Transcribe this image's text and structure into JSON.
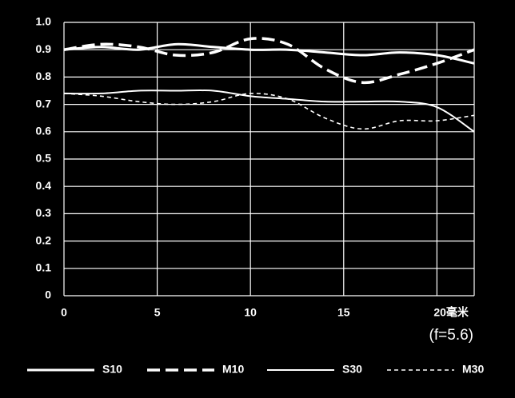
{
  "chart_data": {
    "type": "line",
    "x": [
      0,
      2,
      4,
      6,
      8,
      10,
      12,
      14,
      16,
      18,
      20,
      22
    ],
    "series": [
      {
        "name": "S10",
        "color": "#ffffff",
        "style": "solid-thick",
        "values": [
          0.9,
          0.91,
          0.9,
          0.92,
          0.91,
          0.9,
          0.9,
          0.89,
          0.88,
          0.89,
          0.88,
          0.85
        ]
      },
      {
        "name": "M10",
        "color": "#ffffff",
        "style": "long-dash",
        "values": [
          0.9,
          0.92,
          0.91,
          0.88,
          0.89,
          0.94,
          0.92,
          0.83,
          0.78,
          0.81,
          0.85,
          0.9
        ]
      },
      {
        "name": "S30",
        "color": "#ffffff",
        "style": "solid",
        "values": [
          0.74,
          0.74,
          0.75,
          0.75,
          0.75,
          0.73,
          0.72,
          0.71,
          0.71,
          0.71,
          0.69,
          0.6
        ]
      },
      {
        "name": "M30",
        "color": "#ffffff",
        "style": "short-dash",
        "values": [
          0.74,
          0.73,
          0.71,
          0.7,
          0.71,
          0.74,
          0.72,
          0.65,
          0.61,
          0.64,
          0.64,
          0.66
        ]
      }
    ],
    "xlim": [
      0,
      22
    ],
    "xticks": [
      0,
      5,
      10,
      15,
      {
        "value": 20,
        "label": "20毫米"
      }
    ],
    "ylim": [
      0,
      1
    ],
    "yticks": [
      0,
      0.1,
      0.2,
      0.3,
      0.4,
      0.5,
      0.6,
      0.7,
      0.8,
      0.9,
      {
        "value": 1,
        "label": "1.0"
      }
    ],
    "grid": true,
    "annotation": "(f=5.6)",
    "legend": "bottom"
  }
}
